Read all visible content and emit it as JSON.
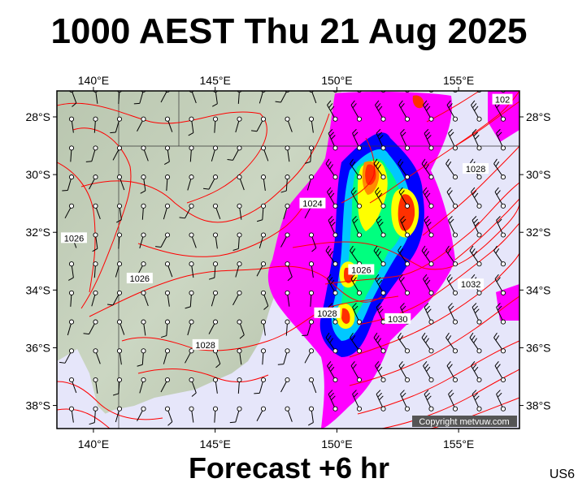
{
  "title": "1000 AEST Thu 21 Aug 2025",
  "subtitle": "Forecast +6 hr",
  "product_code": "US6",
  "copyright": "Copyright metvuw.com",
  "map": {
    "lon_range": [
      138.5,
      157.5
    ],
    "lat_range": [
      -38.8,
      -27.1
    ],
    "lon_ticks": [
      {
        "value": 140,
        "label": "140°E"
      },
      {
        "value": 145,
        "label": "145°E"
      },
      {
        "value": 150,
        "label": "150°E"
      },
      {
        "value": 155,
        "label": "155°E"
      }
    ],
    "lat_ticks": [
      {
        "value": -28,
        "label": "28°S"
      },
      {
        "value": -30,
        "label": "30°S"
      },
      {
        "value": -32,
        "label": "32°S"
      },
      {
        "value": -34,
        "label": "34°S"
      },
      {
        "value": -36,
        "label": "36°S"
      },
      {
        "value": -38,
        "label": "38°S"
      }
    ],
    "isobar_labels": [
      {
        "text": "1026",
        "lon": 139.2,
        "lat": -32.2
      },
      {
        "text": "1026",
        "lon": 141.9,
        "lat": -33.6
      },
      {
        "text": "1028",
        "lon": 144.6,
        "lat": -35.9
      },
      {
        "text": "1024",
        "lon": 149.0,
        "lat": -31.0
      },
      {
        "text": "1026",
        "lon": 151.0,
        "lat": -33.3
      },
      {
        "text": "1028",
        "lon": 149.6,
        "lat": -34.8
      },
      {
        "text": "1030",
        "lon": 152.5,
        "lat": -35.0
      },
      {
        "text": "1032",
        "lon": 155.5,
        "lat": -33.8
      },
      {
        "text": "1028",
        "lon": 155.7,
        "lat": -29.8
      },
      {
        "text": "102",
        "lon": 156.8,
        "lat": -27.4
      }
    ],
    "colors": {
      "land": "#c6d2bd",
      "ocean": "#e6e6fa",
      "isobar": "#ff0000",
      "frame": "#000000"
    }
  }
}
